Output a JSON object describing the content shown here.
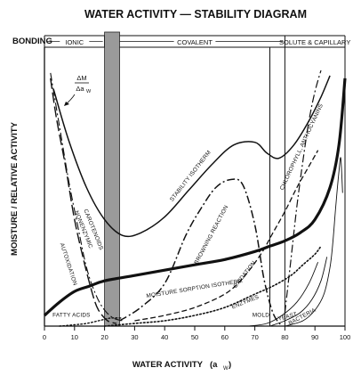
{
  "chart_data": {
    "type": "line",
    "title": "WATER ACTIVITY — STABILITY DIAGRAM",
    "xlabel": "WATER ACTIVITY",
    "xlabel_symbol": "(a",
    "xlabel_subscript": "W",
    "xlabel_close": ")",
    "ylabel": "MOISTURE  /  RELATIVE ACTIVITY",
    "xlim": [
      0,
      100
    ],
    "x_ticks": [
      "0",
      "10",
      "20",
      "30",
      "40",
      "50",
      "60",
      "70",
      "80",
      "90",
      "100"
    ],
    "grid": false,
    "bonding": {
      "title": "BONDING",
      "bands": [
        {
          "label": "IONIC",
          "from": 0,
          "to": 20
        },
        {
          "label": "COVALENT",
          "from": 20,
          "to": 80
        },
        {
          "label": "SOLUTE & CAPILLARY",
          "from": 80,
          "to": 100
        }
      ]
    },
    "shaded_band": {
      "from": 20,
      "to": 25
    },
    "vertical_lines": [
      75,
      80
    ],
    "derivative_label": {
      "numerator": "ΔM",
      "denominator": "Δa",
      "subscript": "W"
    },
    "series": [
      {
        "name": "STABILITY ISOTHERM",
        "style": "solid",
        "width": 1.5,
        "x": [
          3,
          8,
          14,
          20,
          26,
          32,
          40,
          48,
          56,
          63,
          70,
          74,
          78,
          83,
          88,
          92,
          95
        ],
        "y": [
          0.89,
          0.7,
          0.52,
          0.4,
          0.34,
          0.35,
          0.41,
          0.51,
          0.61,
          0.68,
          0.69,
          0.65,
          0.63,
          0.68,
          0.77,
          0.86,
          0.94
        ]
      },
      {
        "name": "MOISTURE SORPTION ISOTHERM",
        "style": "solid",
        "width": 3.2,
        "x": [
          0,
          5,
          10,
          15,
          20,
          30,
          40,
          50,
          60,
          70,
          75,
          80,
          85,
          90,
          95,
          98,
          100
        ],
        "y": [
          0.04,
          0.09,
          0.13,
          0.15,
          0.17,
          0.19,
          0.21,
          0.23,
          0.25,
          0.28,
          0.3,
          0.32,
          0.35,
          0.4,
          0.52,
          0.68,
          0.93
        ]
      },
      {
        "name": "BROWNING REACTION",
        "style": "dashdot",
        "width": 1.5,
        "x": [
          25,
          32,
          40,
          47,
          52,
          57,
          62,
          66,
          70,
          73,
          76,
          79
        ],
        "y": [
          0.02,
          0.07,
          0.16,
          0.34,
          0.44,
          0.52,
          0.55,
          0.53,
          0.38,
          0.18,
          0.05,
          0.0
        ]
      },
      {
        "name": "OXIDATION",
        "style": "dashed",
        "width": 1.3,
        "x": [
          30,
          40,
          50,
          60,
          66,
          72,
          76,
          80,
          84,
          88,
          91
        ],
        "y": [
          0.02,
          0.04,
          0.07,
          0.12,
          0.18,
          0.27,
          0.35,
          0.43,
          0.52,
          0.6,
          0.66
        ]
      },
      {
        "name": "ENZYMES",
        "style": "dotted",
        "width": 1.6,
        "x": [
          20,
          30,
          40,
          50,
          60,
          70,
          76,
          82,
          86,
          90,
          92
        ],
        "y": [
          0.0,
          0.01,
          0.02,
          0.04,
          0.07,
          0.12,
          0.15,
          0.19,
          0.23,
          0.27,
          0.3
        ]
      },
      {
        "name": "CHLOROPHYLL, ANTHOCYANINS",
        "style": "dashdot",
        "width": 1.2,
        "x": [
          80,
          82,
          84,
          86,
          88,
          90,
          92
        ],
        "y": [
          0.05,
          0.25,
          0.45,
          0.62,
          0.77,
          0.88,
          0.96
        ]
      },
      {
        "name": "AUTOXIDATION",
        "style": "longdash",
        "width": 1.4,
        "x": [
          2,
          4,
          7,
          10,
          13,
          16,
          18,
          21,
          24
        ],
        "y": [
          0.93,
          0.78,
          0.6,
          0.4,
          0.25,
          0.12,
          0.06,
          0.02,
          0.01
        ]
      },
      {
        "name": "NONENZYMIC CAROTENOIDS",
        "style": "dashdot",
        "width": 1.1,
        "x": [
          2,
          5,
          8,
          11,
          14,
          17,
          20,
          23,
          26
        ],
        "y": [
          0.95,
          0.75,
          0.55,
          0.38,
          0.22,
          0.12,
          0.06,
          0.03,
          0.02
        ]
      },
      {
        "name": "FATTY ACIDS",
        "style": "dotted",
        "width": 1.4,
        "x": [
          5,
          10,
          14,
          18,
          22,
          26
        ],
        "y": [
          0.0,
          0.005,
          0.01,
          0.02,
          0.03,
          0.03
        ]
      },
      {
        "name": "MOLD",
        "style": "solid",
        "width": 0.9,
        "x": [
          68,
          74,
          79,
          84,
          88,
          91
        ],
        "y": [
          0.0,
          0.01,
          0.04,
          0.09,
          0.16,
          0.24
        ]
      },
      {
        "name": "YEAST",
        "style": "solid",
        "width": 0.9,
        "x": [
          75,
          80,
          85,
          89,
          92,
          94
        ],
        "y": [
          0.0,
          0.02,
          0.05,
          0.1,
          0.17,
          0.26
        ]
      },
      {
        "name": "BACTERIA",
        "style": "solid",
        "width": 0.9,
        "x": [
          80,
          86,
          90,
          93,
          95,
          96,
          97,
          98,
          98.6,
          99.2
        ],
        "y": [
          0.0,
          0.02,
          0.06,
          0.12,
          0.22,
          0.32,
          0.46,
          0.58,
          0.63,
          0.5
        ]
      }
    ],
    "curve_labels": [
      {
        "text": "STABILITY ISOTHERM",
        "x": 49,
        "y": 0.56,
        "angle": -52
      },
      {
        "text": "BROWNING REACTION",
        "x": 56,
        "y": 0.34,
        "angle": -62
      },
      {
        "text": "CHLOROPHYLL, ANTHOCYANINS",
        "x": 86,
        "y": 0.67,
        "angle": -65
      },
      {
        "text": "MOISTURE  SORPTION  ISOTHERM",
        "x": 50,
        "y": 0.135,
        "angle": -9
      },
      {
        "text": "OXIDATION",
        "x": 67,
        "y": 0.19,
        "angle": -52
      },
      {
        "text": "ENZYMES",
        "x": 67,
        "y": 0.085,
        "angle": -22
      },
      {
        "text": "AUTOXIDATION",
        "x": 7.5,
        "y": 0.23,
        "angle": 72
      },
      {
        "text": "NONENZYMIC",
        "x": 12.5,
        "y": 0.36,
        "angle": 68
      },
      {
        "text": "CAROTENOIDS",
        "x": 15.8,
        "y": 0.36,
        "angle": 68
      },
      {
        "text": "FATTY ACIDS",
        "x": 9,
        "y": 0.035,
        "angle": 0
      },
      {
        "text": "MOLD",
        "x": 72,
        "y": 0.035,
        "angle": 0
      },
      {
        "text": "YEAST",
        "x": 81,
        "y": 0.03,
        "angle": -15
      },
      {
        "text": "BACTERIA",
        "x": 86,
        "y": 0.03,
        "angle": -28
      }
    ]
  }
}
